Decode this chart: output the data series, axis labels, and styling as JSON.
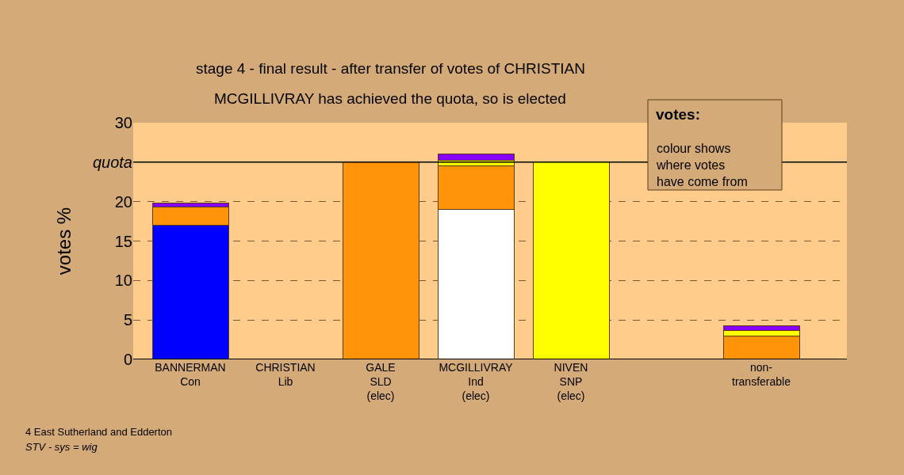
{
  "chart_data": {
    "type": "bar",
    "stacked": true,
    "title": "stage 4 - final result - after transfer of votes of CHRISTIAN",
    "subtitle": "MCGILLIVRAY has achieved the quota, so is elected",
    "ylabel": "votes %",
    "categories": [
      "BANNERMAN\nCon",
      "CHRISTIAN\nLib",
      "GALE\nSLD\n(elec)",
      "MCGILLIVRAY\nInd\n(elec)",
      "NIVEN\nSNP\n(elec)",
      null,
      "non-\ntransferable"
    ],
    "series": [
      {
        "color": "#0000ff",
        "values": [
          17.0,
          0,
          0,
          0,
          0,
          null,
          0
        ]
      },
      {
        "color": "#ffffff",
        "values": [
          0,
          0,
          0,
          19.0,
          0,
          null,
          0
        ]
      },
      {
        "color": "#ff9408",
        "values": [
          2.3,
          0,
          25,
          5.5,
          0,
          null,
          3.0
        ]
      },
      {
        "color": "#ffff00",
        "values": [
          0,
          0,
          0,
          0.7,
          25,
          null,
          0.7
        ]
      },
      {
        "color": "#8800ff",
        "values": [
          0.5,
          0,
          0,
          0.8,
          0,
          null,
          0.6
        ]
      }
    ],
    "ylim": [
      0,
      30
    ],
    "yticks": [
      0,
      5,
      10,
      15,
      20,
      {
        "value": 25,
        "label": "quota"
      },
      30
    ],
    "grid": "y",
    "ref_lines": [
      {
        "axis": "y",
        "value": 25,
        "color": "#000000",
        "line_style": "solid"
      }
    ],
    "annotations": [
      "votes:",
      "colour shows\nwhere votes\nhave come from",
      "4 East Sutherland and Edderton",
      "STV - sys = wig"
    ]
  }
}
